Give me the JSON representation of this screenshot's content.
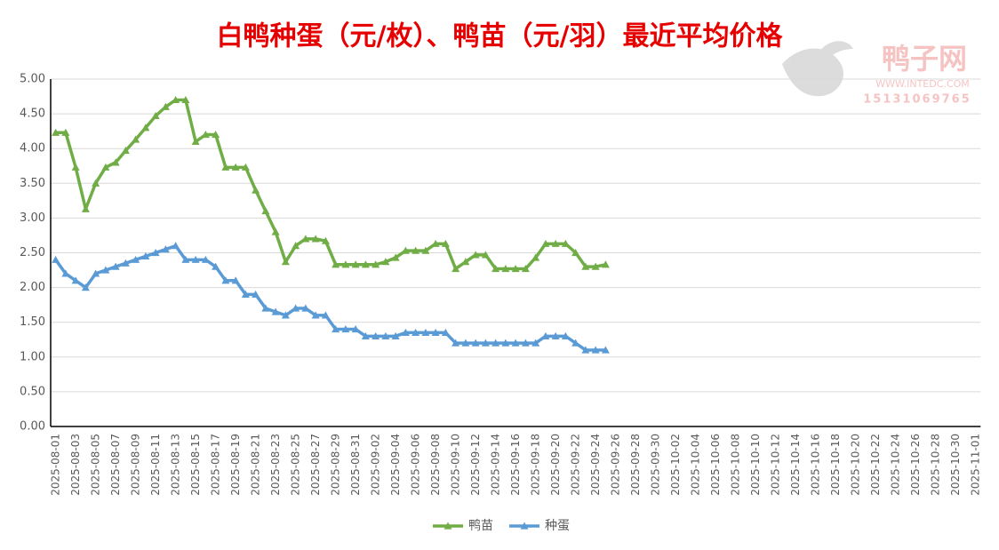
{
  "chart_data": {
    "type": "line",
    "title": "白鸭种蛋（元/枚）、鸭苗（元/羽）最近平均价格",
    "watermark": {
      "name": "鸭子网",
      "site": "WWW.INTEDC.COM",
      "phone": "15131069765"
    },
    "categories": [
      "2025-08-01",
      null,
      "2025-08-03",
      null,
      "2025-08-05",
      null,
      "2025-08-07",
      null,
      "2025-08-09",
      null,
      "2025-08-11",
      null,
      "2025-08-13",
      null,
      "2025-08-15",
      null,
      "2025-08-17",
      null,
      "2025-08-19",
      null,
      "2025-08-21",
      null,
      "2025-08-23",
      null,
      "2025-08-25",
      null,
      "2025-08-27",
      null,
      "2025-08-29",
      null,
      "2025-08-31",
      null,
      "2025-09-02",
      null,
      "2025-09-04",
      null,
      "2025-09-06",
      null,
      "2025-09-08",
      null,
      "2025-09-10",
      null,
      "2025-09-12",
      null,
      "2025-09-14",
      null,
      "2025-09-16",
      null,
      "2025-09-18",
      null,
      "2025-09-20",
      null,
      "2025-09-22",
      null,
      "2025-09-24",
      null,
      "2025-09-26",
      null,
      "2025-09-28",
      null,
      "2025-09-30",
      null,
      "2025-10-02",
      null,
      "2025-10-04",
      null,
      "2025-10-06",
      null,
      "2025-10-08",
      null,
      "2025-10-10",
      null,
      "2025-10-12",
      null,
      "2025-10-14",
      null,
      "2025-10-16",
      null,
      "2025-10-18",
      null,
      "2025-10-20",
      null,
      "2025-10-22",
      null,
      "2025-10-24",
      null,
      "2025-10-26",
      null,
      "2025-10-28",
      null,
      "2025-10-30",
      null,
      "2025-11-01"
    ],
    "series": [
      {
        "name": "鸭苗",
        "color": "#70ad47",
        "values": [
          4.23,
          4.23,
          3.73,
          3.13,
          3.5,
          3.73,
          3.8,
          3.97,
          4.13,
          4.3,
          4.47,
          4.6,
          4.7,
          4.7,
          4.1,
          4.2,
          4.2,
          3.73,
          3.73,
          3.73,
          3.4,
          3.1,
          2.8,
          2.37,
          2.6,
          2.7,
          2.7,
          2.67,
          2.33,
          2.33,
          2.33,
          2.33,
          2.33,
          2.37,
          2.43,
          2.53,
          2.53,
          2.53,
          2.63,
          2.63,
          2.27,
          2.37,
          2.47,
          2.47,
          2.27,
          2.27,
          2.27,
          2.27,
          2.43,
          2.63,
          2.63,
          2.63,
          2.5,
          2.3,
          2.3,
          2.33,
          null,
          null,
          null,
          null,
          null,
          null,
          null,
          null,
          null,
          null,
          null,
          null,
          null,
          null,
          null,
          null,
          null,
          null,
          null,
          null,
          null,
          null,
          null,
          null,
          null,
          null,
          null,
          null,
          null,
          null,
          null,
          null,
          null,
          null,
          null,
          null,
          null
        ]
      },
      {
        "name": "种蛋",
        "color": "#5b9bd5",
        "values": [
          2.4,
          2.2,
          2.1,
          2.0,
          2.2,
          2.25,
          2.3,
          2.35,
          2.4,
          2.45,
          2.5,
          2.55,
          2.6,
          2.4,
          2.4,
          2.4,
          2.3,
          2.1,
          2.1,
          1.9,
          1.9,
          1.7,
          1.65,
          1.6,
          1.7,
          1.7,
          1.6,
          1.6,
          1.4,
          1.4,
          1.4,
          1.3,
          1.3,
          1.3,
          1.3,
          1.35,
          1.35,
          1.35,
          1.35,
          1.35,
          1.2,
          1.2,
          1.2,
          1.2,
          1.2,
          1.2,
          1.2,
          1.2,
          1.2,
          1.3,
          1.3,
          1.3,
          1.2,
          1.1,
          1.1,
          1.1,
          null,
          null,
          null,
          null,
          null,
          null,
          null,
          null,
          null,
          null,
          null,
          null,
          null,
          null,
          null,
          null,
          null,
          null,
          null,
          null,
          null,
          null,
          null,
          null,
          null,
          null,
          null,
          null,
          null,
          null,
          null,
          null,
          null,
          null,
          null,
          null,
          null
        ]
      }
    ],
    "ylim": [
      0,
      5
    ],
    "yticks": [
      {
        "value": 0,
        "label": "0.00"
      },
      {
        "value": 0.5,
        "label": "0.50"
      },
      {
        "value": 1,
        "label": "1.00"
      },
      {
        "value": 1.5,
        "label": "1.50"
      },
      {
        "value": 2,
        "label": "2.00"
      },
      {
        "value": 2.5,
        "label": "2.50"
      },
      {
        "value": 3,
        "label": "3.00"
      },
      {
        "value": 3.5,
        "label": "3.50"
      },
      {
        "value": 4,
        "label": "4.00"
      },
      {
        "value": 4.5,
        "label": "4.50"
      },
      {
        "value": 5,
        "label": "5.00"
      }
    ],
    "grid": true,
    "legend": "bottom"
  }
}
